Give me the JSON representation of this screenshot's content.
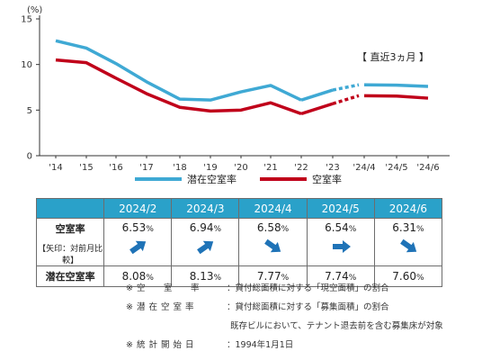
{
  "chart_data": {
    "type": "line",
    "ylabel": "(%)",
    "ylim": [
      0,
      15
    ],
    "yticks": [
      0,
      5,
      10,
      15
    ],
    "categories": [
      "'14",
      "'15",
      "'16",
      "'17",
      "'18",
      "'19",
      "'20",
      "'21",
      "'22",
      "'23",
      "'24/4",
      "'24/5",
      "'24/6"
    ],
    "series": [
      {
        "name": "潜在空室率",
        "color": "#3fa9d4",
        "annual": [
          12.6,
          11.8,
          10.1,
          8.1,
          6.2,
          6.1,
          7.0,
          7.7,
          6.1,
          7.2
        ],
        "recent": [
          7.77,
          7.74,
          7.6
        ]
      },
      {
        "name": "空室率",
        "color": "#c0001a",
        "annual": [
          10.5,
          10.2,
          8.5,
          6.8,
          5.3,
          4.9,
          5.0,
          5.8,
          4.6,
          5.7
        ],
        "recent": [
          6.58,
          6.54,
          6.31
        ]
      }
    ],
    "callout": "【 直近3ヵ月 】",
    "grid": false,
    "legend": "bottom"
  },
  "table": {
    "months": [
      "2024/2",
      "2024/3",
      "2024/4",
      "2024/5",
      "2024/6"
    ],
    "vacancy_label": "空室率",
    "vacancy_sub": "【矢印：対前月比較】",
    "vacancy": [
      {
        "value": "6.53",
        "dir": "up"
      },
      {
        "value": "6.94",
        "dir": "up"
      },
      {
        "value": "6.58",
        "dir": "down"
      },
      {
        "value": "6.54",
        "dir": "flat"
      },
      {
        "value": "6.31",
        "dir": "down"
      }
    ],
    "latent_label": "潜在空室率",
    "latent": [
      "8.08",
      "8.13",
      "7.77",
      "7.74",
      "7.60"
    ],
    "unit": "%"
  },
  "notes": [
    {
      "key": "※ 空　　室　　率",
      "text": "：貸付総面積に対する「現空面積」の割合"
    },
    {
      "key": "※ 潜 在 空 室 率",
      "text": "：貸付総面積に対する「募集面積」の割合"
    },
    {
      "key": "",
      "text": "既存ビルにおいて、テナント退去前を含む募集床が対象"
    },
    {
      "key": "※ 統 計 開 始 日",
      "text": "：1994年1月1日"
    }
  ],
  "colors": {
    "header": "#2aa1c9",
    "arrow": "#1f73b7"
  }
}
